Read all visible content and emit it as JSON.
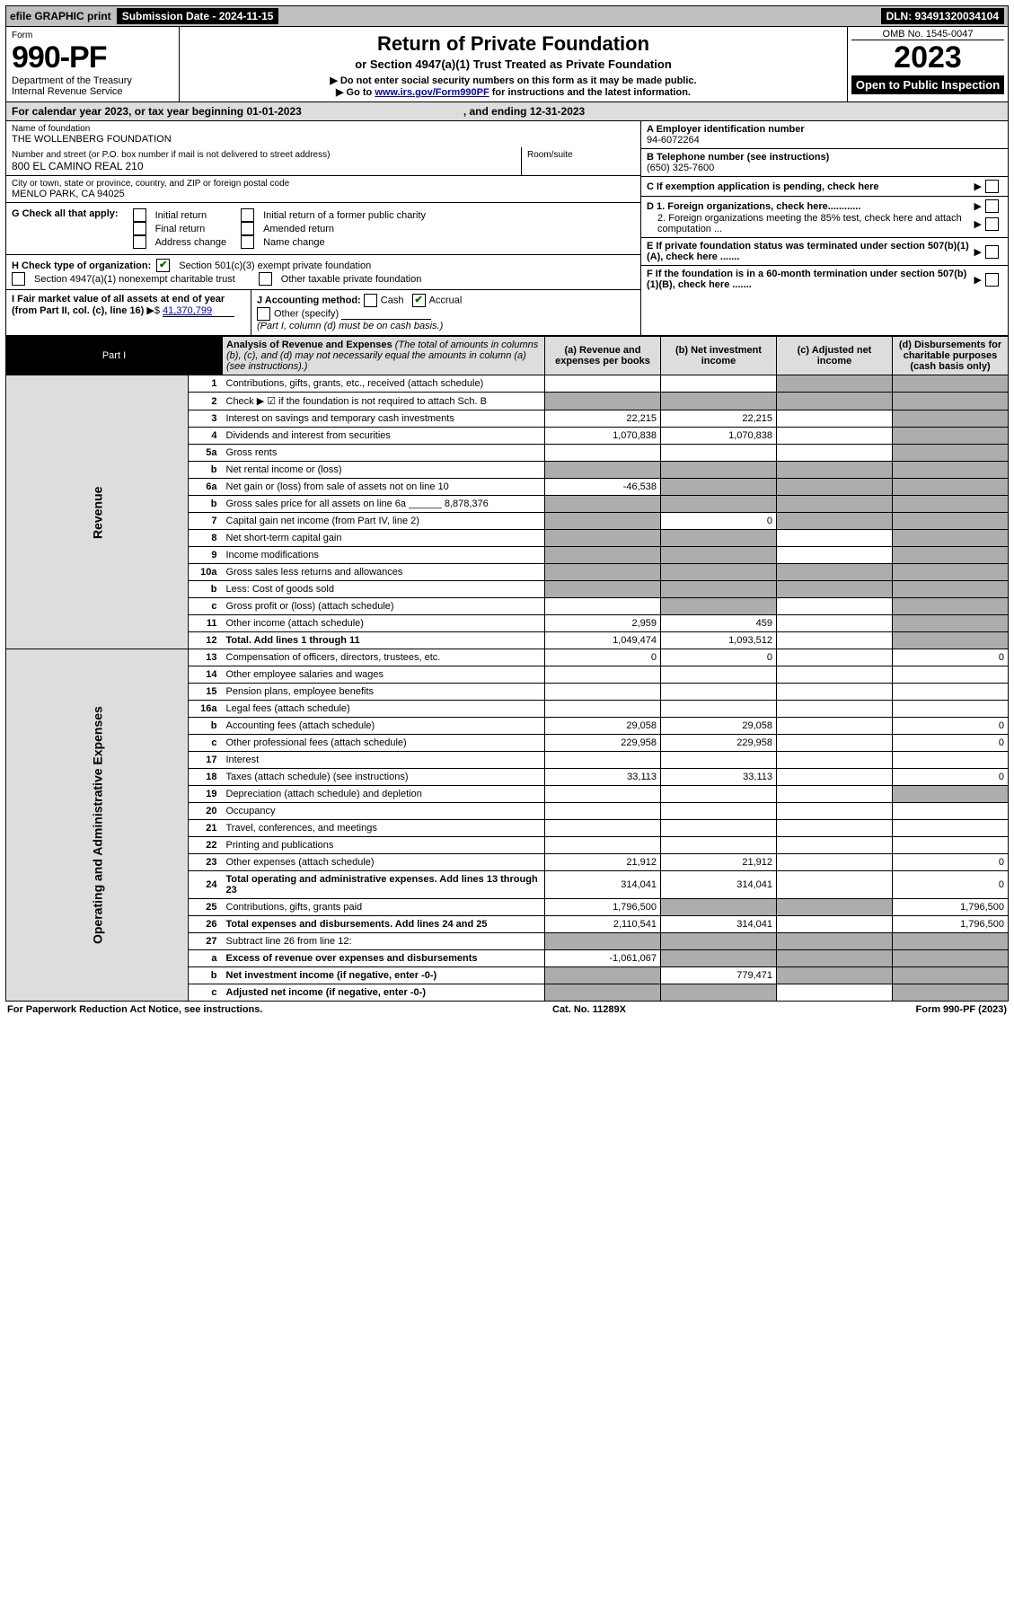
{
  "top": {
    "efile": "efile GRAPHIC print",
    "submission_label": "Submission Date - 2024-11-15",
    "dln": "DLN: 93491320034104"
  },
  "header": {
    "form_word": "Form",
    "form_number": "990-PF",
    "dept": "Department of the Treasury",
    "irs": "Internal Revenue Service",
    "title": "Return of Private Foundation",
    "subtitle": "or Section 4947(a)(1) Trust Treated as Private Foundation",
    "note1": "▶ Do not enter social security numbers on this form as it may be made public.",
    "note2_pre": "▶ Go to ",
    "note2_link": "www.irs.gov/Form990PF",
    "note2_post": " for instructions and the latest information.",
    "omb": "OMB No. 1545-0047",
    "year": "2023",
    "open_public": "Open to Public Inspection"
  },
  "calendar": {
    "text1": "For calendar year 2023, or tax year beginning 01-01-2023",
    "text2": ", and ending 12-31-2023"
  },
  "left_info": {
    "name_label": "Name of foundation",
    "name": "THE WOLLENBERG FOUNDATION",
    "addr_label": "Number and street (or P.O. box number if mail is not delivered to street address)",
    "addr": "800 EL CAMINO REAL 210",
    "room_label": "Room/suite",
    "city_label": "City or town, state or province, country, and ZIP or foreign postal code",
    "city": "MENLO PARK, CA  94025",
    "g_label": "G Check all that apply:",
    "g_opts": [
      "Initial return",
      "Final return",
      "Address change",
      "Initial return of a former public charity",
      "Amended return",
      "Name change"
    ],
    "h_label": "H Check type of organization:",
    "h_opt1": "Section 501(c)(3) exempt private foundation",
    "h_opt2": "Section 4947(a)(1) nonexempt charitable trust",
    "h_opt3": "Other taxable private foundation",
    "i_label": "I Fair market value of all assets at end of year (from Part II, col. (c), line 16)",
    "i_value": "41,370,799",
    "j_label": "J Accounting method:",
    "j_cash": "Cash",
    "j_accrual": "Accrual",
    "j_other": "Other (specify)",
    "j_note": "(Part I, column (d) must be on cash basis.)"
  },
  "right_info": {
    "a_label": "A Employer identification number",
    "a_val": "94-6072264",
    "b_label": "B Telephone number (see instructions)",
    "b_val": "(650) 325-7600",
    "c_label": "C If exemption application is pending, check here",
    "d1": "D 1. Foreign organizations, check here............",
    "d2": "2. Foreign organizations meeting the 85% test, check here and attach computation ...",
    "e": "E  If private foundation status was terminated under section 507(b)(1)(A), check here .......",
    "f": "F  If the foundation is in a 60-month termination under section 507(b)(1)(B), check here .......",
    "arrow": "▶"
  },
  "part1": {
    "label": "Part I",
    "title": "Analysis of Revenue and Expenses",
    "title_note": " (The total of amounts in columns (b), (c), and (d) may not necessarily equal the amounts in column (a) (see instructions).)",
    "col_a": "(a) Revenue and expenses per books",
    "col_b": "(b) Net investment income",
    "col_c": "(c) Adjusted net income",
    "col_d": "(d) Disbursements for charitable purposes (cash basis only)"
  },
  "section_labels": {
    "revenue": "Revenue",
    "expenses": "Operating and Administrative Expenses"
  },
  "rows": [
    {
      "n": "1",
      "d": "Contributions, gifts, grants, etc., received (attach schedule)",
      "a": "",
      "b": "",
      "c": "",
      "dd": "",
      "grey_cd": true
    },
    {
      "n": "2",
      "d": "Check ▶ ☑ if the foundation is not required to attach Sch. B",
      "a": "",
      "b": "",
      "c": "",
      "dd": "",
      "grey_all": true,
      "checked": true
    },
    {
      "n": "3",
      "d": "Interest on savings and temporary cash investments",
      "a": "22,215",
      "b": "22,215",
      "c": "",
      "dd": "",
      "grey_d": true
    },
    {
      "n": "4",
      "d": "Dividends and interest from securities",
      "a": "1,070,838",
      "b": "1,070,838",
      "c": "",
      "dd": "",
      "grey_d": true
    },
    {
      "n": "5a",
      "d": "Gross rents",
      "a": "",
      "b": "",
      "c": "",
      "dd": "",
      "grey_d": true
    },
    {
      "n": "b",
      "d": "Net rental income or (loss)",
      "a": "",
      "b": "",
      "c": "",
      "dd": "",
      "grey_all": true,
      "inset": true
    },
    {
      "n": "6a",
      "d": "Net gain or (loss) from sale of assets not on line 10",
      "a": "-46,538",
      "b": "",
      "c": "",
      "dd": "",
      "grey_bcd": true
    },
    {
      "n": "b",
      "d": "Gross sales price for all assets on line 6a ______ 8,878,376",
      "a": "",
      "b": "",
      "c": "",
      "dd": "",
      "grey_all": true
    },
    {
      "n": "7",
      "d": "Capital gain net income (from Part IV, line 2)",
      "a": "",
      "b": "0",
      "c": "",
      "dd": "",
      "grey_acd": true,
      "grey_a": true
    },
    {
      "n": "8",
      "d": "Net short-term capital gain",
      "a": "",
      "b": "",
      "c": "",
      "dd": "",
      "grey_abd": true
    },
    {
      "n": "9",
      "d": "Income modifications",
      "a": "",
      "b": "",
      "c": "",
      "dd": "",
      "grey_abd": true
    },
    {
      "n": "10a",
      "d": "Gross sales less returns and allowances",
      "a": "",
      "b": "",
      "c": "",
      "dd": "",
      "grey_all": true,
      "inset": true
    },
    {
      "n": "b",
      "d": "Less: Cost of goods sold",
      "a": "",
      "b": "",
      "c": "",
      "dd": "",
      "grey_all": true,
      "inset": true
    },
    {
      "n": "c",
      "d": "Gross profit or (loss) (attach schedule)",
      "a": "",
      "b": "",
      "c": "",
      "dd": "",
      "grey_bd": true
    },
    {
      "n": "11",
      "d": "Other income (attach schedule)",
      "a": "2,959",
      "b": "459",
      "c": "",
      "dd": "",
      "grey_d": true
    },
    {
      "n": "12",
      "d": "Total. Add lines 1 through 11",
      "a": "1,049,474",
      "b": "1,093,512",
      "c": "",
      "dd": "",
      "grey_d": true,
      "bold": true
    }
  ],
  "exp_rows": [
    {
      "n": "13",
      "d": "Compensation of officers, directors, trustees, etc.",
      "a": "0",
      "b": "0",
      "c": "",
      "dd": "0"
    },
    {
      "n": "14",
      "d": "Other employee salaries and wages",
      "a": "",
      "b": "",
      "c": "",
      "dd": ""
    },
    {
      "n": "15",
      "d": "Pension plans, employee benefits",
      "a": "",
      "b": "",
      "c": "",
      "dd": ""
    },
    {
      "n": "16a",
      "d": "Legal fees (attach schedule)",
      "a": "",
      "b": "",
      "c": "",
      "dd": ""
    },
    {
      "n": "b",
      "d": "Accounting fees (attach schedule)",
      "a": "29,058",
      "b": "29,058",
      "c": "",
      "dd": "0"
    },
    {
      "n": "c",
      "d": "Other professional fees (attach schedule)",
      "a": "229,958",
      "b": "229,958",
      "c": "",
      "dd": "0"
    },
    {
      "n": "17",
      "d": "Interest",
      "a": "",
      "b": "",
      "c": "",
      "dd": ""
    },
    {
      "n": "18",
      "d": "Taxes (attach schedule) (see instructions)",
      "a": "33,113",
      "b": "33,113",
      "c": "",
      "dd": "0"
    },
    {
      "n": "19",
      "d": "Depreciation (attach schedule) and depletion",
      "a": "",
      "b": "",
      "c": "",
      "dd": "",
      "grey_d": true
    },
    {
      "n": "20",
      "d": "Occupancy",
      "a": "",
      "b": "",
      "c": "",
      "dd": ""
    },
    {
      "n": "21",
      "d": "Travel, conferences, and meetings",
      "a": "",
      "b": "",
      "c": "",
      "dd": ""
    },
    {
      "n": "22",
      "d": "Printing and publications",
      "a": "",
      "b": "",
      "c": "",
      "dd": ""
    },
    {
      "n": "23",
      "d": "Other expenses (attach schedule)",
      "a": "21,912",
      "b": "21,912",
      "c": "",
      "dd": "0"
    },
    {
      "n": "24",
      "d": "Total operating and administrative expenses. Add lines 13 through 23",
      "a": "314,041",
      "b": "314,041",
      "c": "",
      "dd": "0",
      "bold": true
    },
    {
      "n": "25",
      "d": "Contributions, gifts, grants paid",
      "a": "1,796,500",
      "b": "",
      "c": "",
      "dd": "1,796,500",
      "grey_bc": true
    },
    {
      "n": "26",
      "d": "Total expenses and disbursements. Add lines 24 and 25",
      "a": "2,110,541",
      "b": "314,041",
      "c": "",
      "dd": "1,796,500",
      "bold": true
    }
  ],
  "net_rows": [
    {
      "n": "27",
      "d": "Subtract line 26 from line 12:",
      "a": "",
      "b": "",
      "c": "",
      "dd": "",
      "grey_all": true
    },
    {
      "n": "a",
      "d": "Excess of revenue over expenses and disbursements",
      "a": "-1,061,067",
      "b": "",
      "c": "",
      "dd": "",
      "grey_bcd": true,
      "bold": true
    },
    {
      "n": "b",
      "d": "Net investment income (if negative, enter -0-)",
      "a": "",
      "b": "779,471",
      "c": "",
      "dd": "",
      "grey_acd": true,
      "bold": true
    },
    {
      "n": "c",
      "d": "Adjusted net income (if negative, enter -0-)",
      "a": "",
      "b": "",
      "c": "",
      "dd": "",
      "grey_abd": true,
      "bold": true
    }
  ],
  "footer": {
    "left": "For Paperwork Reduction Act Notice, see instructions.",
    "center": "Cat. No. 11289X",
    "right": "Form 990-PF (2023)"
  }
}
